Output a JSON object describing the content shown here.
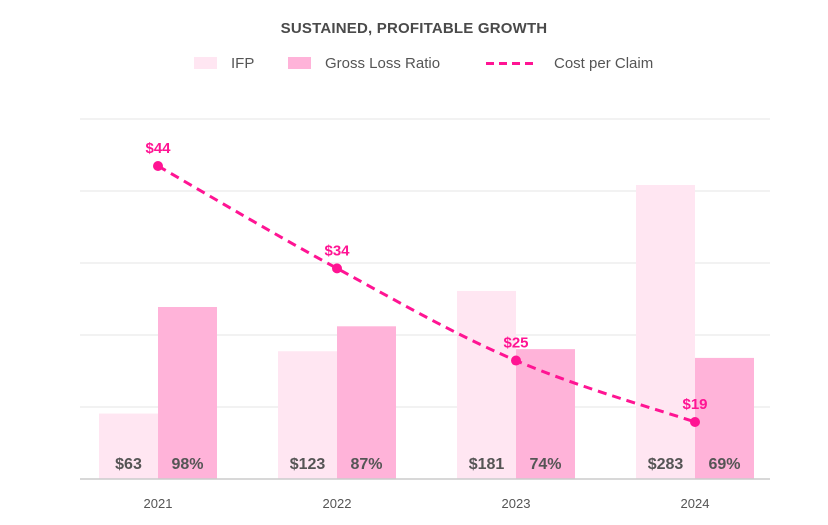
{
  "colors": {
    "ifp": "#ffe6f2",
    "gross_loss_ratio": "#ffb3d9",
    "cost_per_claim": "#ff1493",
    "grid": "#eeeeee",
    "axis": "#cccccc",
    "text": "#555555"
  },
  "chart_data": {
    "type": "bar",
    "title": "SUSTAINED, PROFITABLE GROWTH",
    "categories": [
      "2021",
      "2022",
      "2023",
      "2024"
    ],
    "legend_position": "top",
    "grid": true,
    "series": [
      {
        "name": "IFP",
        "type": "bar",
        "values": [
          63,
          123,
          181,
          283
        ],
        "labels": [
          "$63",
          "$123",
          "$181",
          "$283"
        ]
      },
      {
        "name": "Gross Loss Ratio",
        "type": "bar",
        "values": [
          98,
          87,
          74,
          69
        ],
        "labels": [
          "98%",
          "87%",
          "74%",
          "69%"
        ]
      },
      {
        "name": "Cost per Claim",
        "type": "line",
        "style": "dashed",
        "values": [
          44,
          34,
          25,
          19
        ],
        "labels": [
          "$44",
          "$34",
          "$25",
          "$19"
        ]
      }
    ]
  }
}
